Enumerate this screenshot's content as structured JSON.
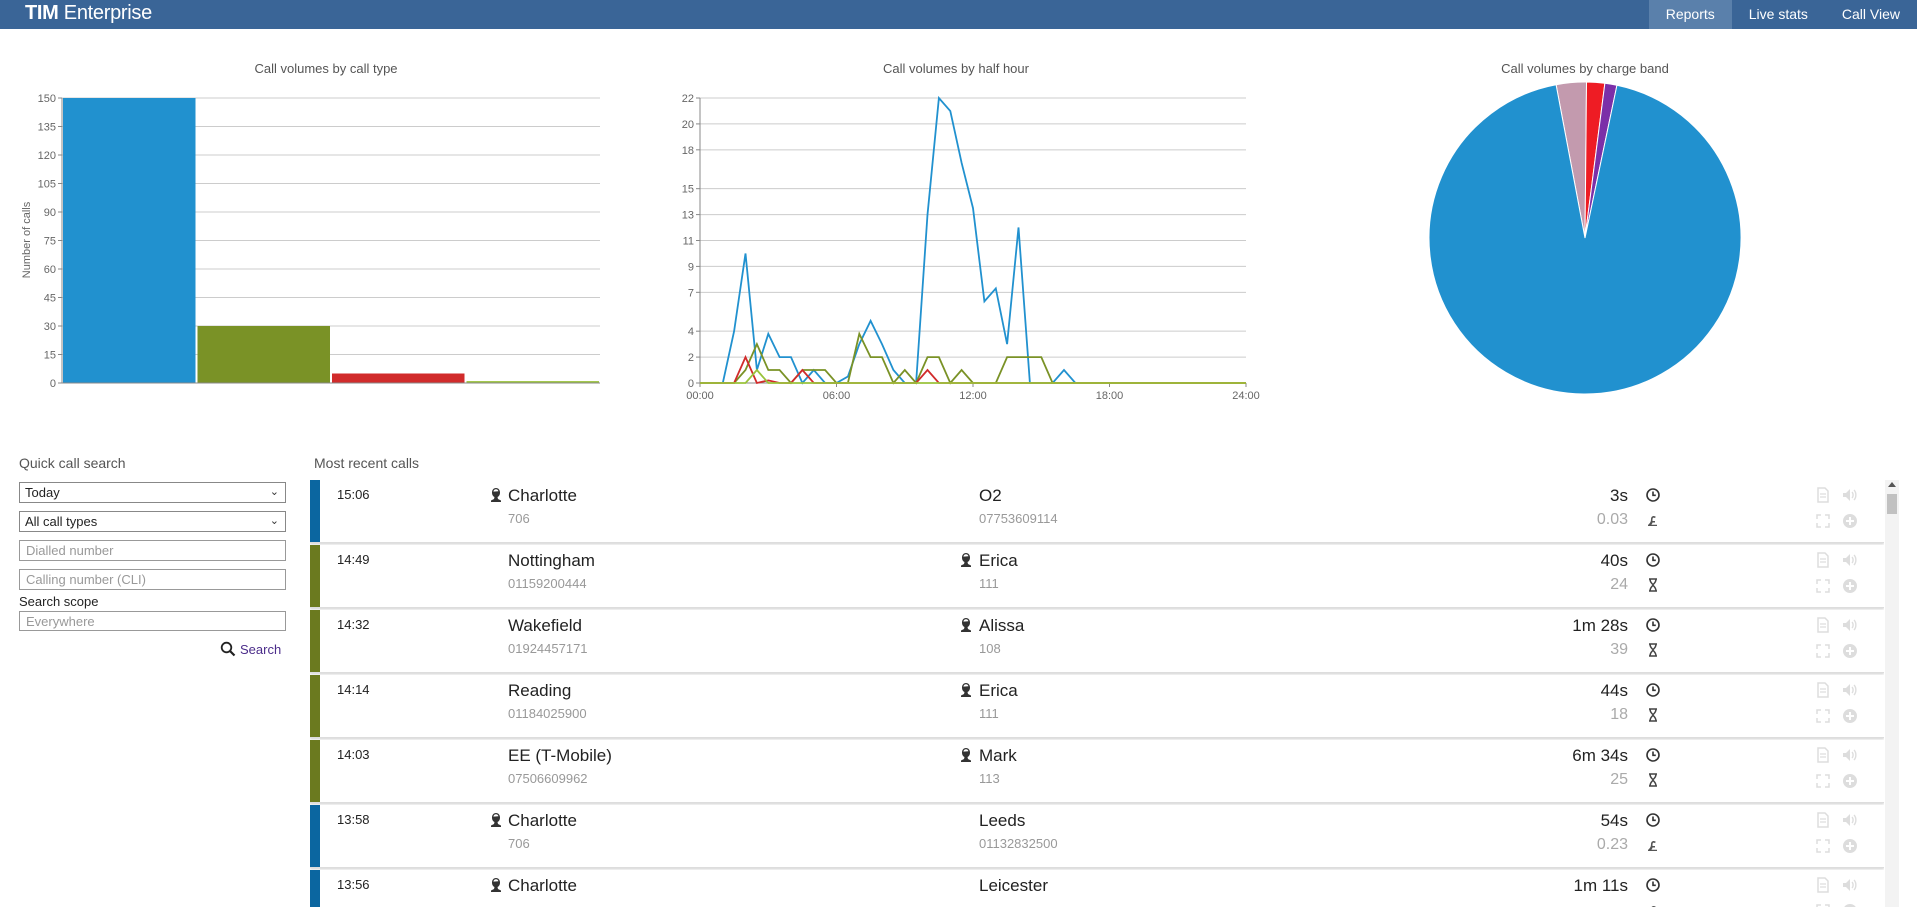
{
  "app": {
    "brand_bold": "TIM",
    "brand_rest": " Enterprise"
  },
  "nav": {
    "tabs": [
      {
        "label": "Reports",
        "active": true
      },
      {
        "label": "Live stats",
        "active": false
      },
      {
        "label": "Call View",
        "active": false
      }
    ]
  },
  "charts": {
    "by_type": {
      "title": "Call volumes by call type",
      "ylabel": "Number of calls"
    },
    "by_half_hour": {
      "title": "Call volumes by half hour"
    },
    "by_charge_band": {
      "title": "Call volumes by charge band"
    }
  },
  "chart_data": [
    {
      "type": "bar",
      "title": "Call volumes by call type",
      "ylabel": "Number of calls",
      "ylim": [
        0,
        150
      ],
      "yticks": [
        0,
        15,
        30,
        45,
        60,
        75,
        90,
        105,
        120,
        135,
        150
      ],
      "grid": true,
      "values": [
        150,
        30,
        5,
        1
      ],
      "colors": [
        "#2191cf",
        "#7a9226",
        "#d12b2b",
        "#9ac33b"
      ]
    },
    {
      "type": "line",
      "title": "Call volumes by half hour",
      "ylim": [
        0,
        22
      ],
      "yticks": [
        0,
        2,
        4,
        7,
        9,
        11,
        13,
        15,
        18,
        20,
        22
      ],
      "xticks": [
        "00:00",
        "06:00",
        "12:00",
        "18:00",
        "24:00"
      ],
      "xlim": [
        0,
        24
      ],
      "grid": true,
      "series": [
        {
          "color": "#2191cf",
          "points": [
            [
              0,
              0
            ],
            [
              1,
              0
            ],
            [
              1.5,
              4
            ],
            [
              2,
              10
            ],
            [
              2.5,
              1
            ],
            [
              3,
              3.8
            ],
            [
              3.5,
              2
            ],
            [
              4,
              2
            ],
            [
              4.5,
              0
            ],
            [
              5,
              1
            ],
            [
              5.5,
              0
            ],
            [
              6,
              0
            ],
            [
              6.5,
              0.5
            ],
            [
              7,
              3
            ],
            [
              7.5,
              4.8
            ],
            [
              8,
              3
            ],
            [
              8.5,
              1
            ],
            [
              9,
              0
            ],
            [
              9.5,
              0
            ],
            [
              10,
              13
            ],
            [
              10.5,
              22
            ],
            [
              11,
              21
            ],
            [
              11.5,
              17
            ],
            [
              12,
              13.5
            ],
            [
              12.5,
              6.3
            ],
            [
              13,
              7.3
            ],
            [
              13.5,
              3
            ],
            [
              14,
              12
            ],
            [
              14.5,
              0
            ],
            [
              15,
              0
            ],
            [
              15.5,
              0
            ],
            [
              16,
              1
            ],
            [
              16.5,
              0
            ],
            [
              17,
              0
            ],
            [
              24,
              0
            ]
          ]
        },
        {
          "color": "#7a9226",
          "points": [
            [
              0,
              0
            ],
            [
              1.5,
              0
            ],
            [
              2,
              1
            ],
            [
              2.5,
              3
            ],
            [
              3,
              1
            ],
            [
              3.5,
              1
            ],
            [
              4,
              0
            ],
            [
              4.5,
              1
            ],
            [
              5,
              1
            ],
            [
              5.5,
              1
            ],
            [
              6,
              0
            ],
            [
              6.5,
              0
            ],
            [
              7,
              3.8
            ],
            [
              7.5,
              2
            ],
            [
              8,
              2
            ],
            [
              8.5,
              0
            ],
            [
              9,
              1
            ],
            [
              9.5,
              0
            ],
            [
              10,
              2
            ],
            [
              10.5,
              2
            ],
            [
              11,
              0
            ],
            [
              11.5,
              1
            ],
            [
              12,
              0
            ],
            [
              13,
              0
            ],
            [
              13.5,
              2
            ],
            [
              14,
              2
            ],
            [
              14.5,
              2
            ],
            [
              15,
              2
            ],
            [
              15.5,
              0
            ],
            [
              24,
              0
            ]
          ]
        },
        {
          "color": "#d12b2b",
          "points": [
            [
              0,
              0
            ],
            [
              1.5,
              0
            ],
            [
              2,
              2
            ],
            [
              2.5,
              0
            ],
            [
              3,
              0.2
            ],
            [
              3.5,
              0
            ],
            [
              4,
              0
            ],
            [
              4.5,
              1
            ],
            [
              5,
              0
            ],
            [
              9.5,
              0
            ],
            [
              10,
              1
            ],
            [
              10.5,
              0
            ],
            [
              24,
              0
            ]
          ]
        },
        {
          "color": "#9ac33b",
          "points": [
            [
              0,
              0
            ],
            [
              2,
              0
            ],
            [
              2.5,
              1
            ],
            [
              3,
              0
            ],
            [
              24,
              0
            ]
          ]
        }
      ]
    },
    {
      "type": "pie",
      "title": "Call volumes by charge band",
      "values": [
        150,
        5,
        3,
        2
      ],
      "colors": [
        "#2191cf",
        "#c39aae",
        "#ee1c24",
        "#7b2fa8"
      ]
    }
  ],
  "quick_search": {
    "title": "Quick call search",
    "period": "Today",
    "call_type": "All call types",
    "dialled_placeholder": "Dialled number",
    "cli_placeholder": "Calling number (CLI)",
    "scope_label": "Search scope",
    "scope_placeholder": "Everywhere",
    "search_label": "Search"
  },
  "recent": {
    "title": "Most recent calls",
    "rows": [
      {
        "time": "15:06",
        "color": "#0b66a0",
        "left_name": "Charlotte",
        "left_num": "706",
        "left_icon": true,
        "right_name": "O2",
        "right_num": "07753609114",
        "right_icon": false,
        "duration": "3s",
        "cost": "0.03",
        "meta_icon": "cost-icon"
      },
      {
        "time": "14:49",
        "color": "#6b7a1f",
        "left_name": "Nottingham",
        "left_num": "01159200444",
        "left_icon": false,
        "right_name": "Erica",
        "right_num": "111",
        "right_icon": true,
        "duration": "40s",
        "cost": "24",
        "meta_icon": "hourglass-icon"
      },
      {
        "time": "14:32",
        "color": "#6b7a1f",
        "left_name": "Wakefield",
        "left_num": "01924457171",
        "left_icon": false,
        "right_name": "Alissa",
        "right_num": "108",
        "right_icon": true,
        "duration": "1m 28s",
        "cost": "39",
        "meta_icon": "hourglass-icon"
      },
      {
        "time": "14:14",
        "color": "#6b7a1f",
        "left_name": "Reading",
        "left_num": "01184025900",
        "left_icon": false,
        "right_name": "Erica",
        "right_num": "111",
        "right_icon": true,
        "duration": "44s",
        "cost": "18",
        "meta_icon": "hourglass-icon"
      },
      {
        "time": "14:03",
        "color": "#6b7a1f",
        "left_name": "EE (T-Mobile)",
        "left_num": "07506609962",
        "left_icon": false,
        "right_name": "Mark",
        "right_num": "113",
        "right_icon": true,
        "duration": "6m 34s",
        "cost": "25",
        "meta_icon": "hourglass-icon"
      },
      {
        "time": "13:58",
        "color": "#0b66a0",
        "left_name": "Charlotte",
        "left_num": "706",
        "left_icon": true,
        "right_name": "Leeds",
        "right_num": "01132832500",
        "right_icon": false,
        "duration": "54s",
        "cost": "0.23",
        "meta_icon": "cost-icon"
      },
      {
        "time": "13:56",
        "color": "#0b66a0",
        "left_name": "Charlotte",
        "left_num": "",
        "left_icon": true,
        "right_name": "Leicester",
        "right_num": "",
        "right_icon": false,
        "duration": "1m 11s",
        "cost": "",
        "meta_icon": "cost-icon"
      }
    ]
  }
}
